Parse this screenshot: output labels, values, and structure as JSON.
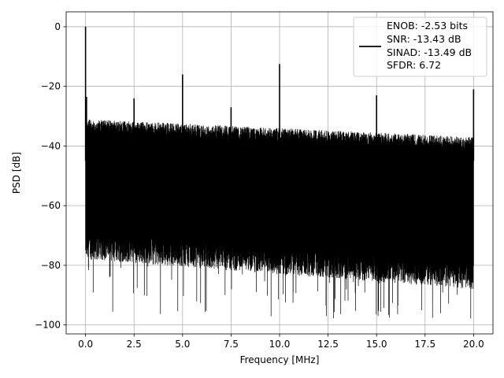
{
  "chart_data": {
    "type": "line",
    "title": "",
    "xlabel": "Frequency [MHz]",
    "ylabel": "PSD [dB]",
    "xlim": [
      -1.0,
      21.0
    ],
    "ylim": [
      -103,
      5
    ],
    "xticks": [
      0.0,
      2.5,
      5.0,
      7.5,
      10.0,
      12.5,
      15.0,
      17.5,
      20.0
    ],
    "xtick_labels": [
      "0.0",
      "2.5",
      "5.0",
      "7.5",
      "10.0",
      "12.5",
      "15.0",
      "17.5",
      "20.0"
    ],
    "yticks": [
      0,
      -20,
      -40,
      -60,
      -80,
      -100
    ],
    "ytick_labels": [
      "0",
      "−20",
      "−40",
      "−60",
      "−80",
      "−100"
    ],
    "grid": true,
    "legend_position": "top-right",
    "legend_lines": [
      "ENOB: -2.53 bits",
      "SNR: -13.43 dB",
      "SINAD: -13.49 dB",
      "SFDR: 6.72"
    ],
    "line_color": "#000000",
    "noise_floor": {
      "x_range": [
        0.0,
        20.0
      ],
      "upper_db": [
        -31,
        -37
      ],
      "lower_db": [
        -75,
        -85
      ],
      "deep_min_db": -98
    },
    "spikes": [
      {
        "x": 0.0,
        "y": 0
      },
      {
        "x": 0.05,
        "y": -23.5
      },
      {
        "x": 2.5,
        "y": -24
      },
      {
        "x": 5.0,
        "y": -16
      },
      {
        "x": 7.5,
        "y": -27
      },
      {
        "x": 10.0,
        "y": -12.5
      },
      {
        "x": 15.0,
        "y": -23
      },
      {
        "x": 20.0,
        "y": -21
      }
    ]
  }
}
